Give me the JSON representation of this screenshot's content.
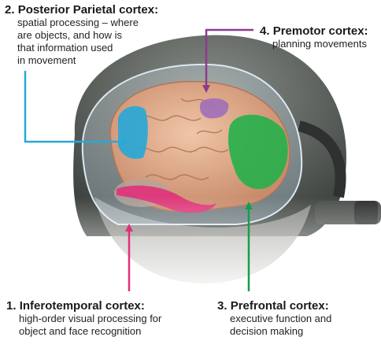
{
  "labels": {
    "posterior_parietal": {
      "number": "2.",
      "title": "Posterior Parietal cortex:",
      "lines": [
        "spatial processing – where",
        "are objects, and how is",
        "that information used",
        "in movement"
      ],
      "color": "#2aa7d6"
    },
    "premotor": {
      "number": "4.",
      "title": "Premotor cortex:",
      "lines": [
        "planning movements"
      ],
      "color": "#8a3c8e"
    },
    "inferotemporal": {
      "number": "1.",
      "title": "Inferotemporal cortex:",
      "lines": [
        "high-order visual processing for",
        "object and face recognition"
      ],
      "color": "#e0307a"
    },
    "prefrontal": {
      "number": "3.",
      "title": "Prefrontal cortex:",
      "lines": [
        "executive function and",
        "decision making"
      ],
      "color": "#14a04a"
    }
  }
}
